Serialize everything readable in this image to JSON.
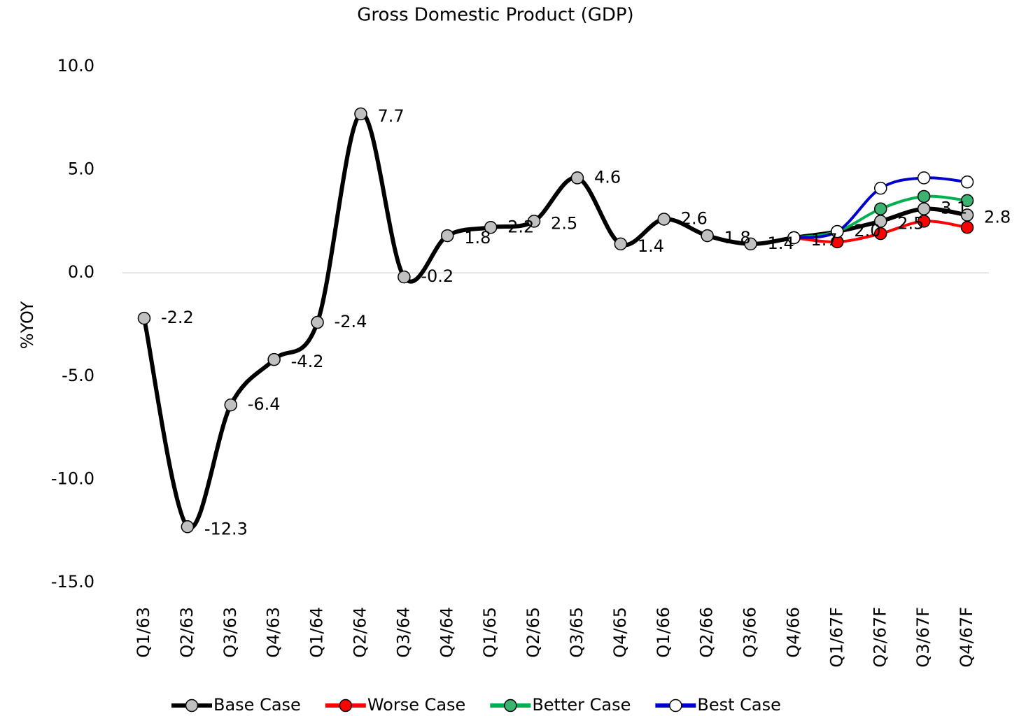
{
  "chart_data": {
    "type": "line",
    "title": "Gross Domestic Product (GDP)",
    "y_label": "%YOY",
    "categories": [
      "Q1/63",
      "Q2/63",
      "Q3/63",
      "Q4/63",
      "Q1/64",
      "Q2/64",
      "Q3/64",
      "Q4/64",
      "Q1/65",
      "Q2/65",
      "Q3/65",
      "Q4/65",
      "Q1/66",
      "Q2/66",
      "Q3/66",
      "Q4/66",
      "Q1/67F",
      "Q2/67F",
      "Q3/67F",
      "Q4/67F"
    ],
    "series": [
      {
        "name": "Base Case",
        "color": "#000000",
        "marker_fill": "#c0c0c0",
        "values": [
          -2.2,
          -12.3,
          -6.4,
          -4.2,
          -2.4,
          7.7,
          -0.2,
          1.8,
          2.2,
          2.5,
          4.6,
          1.4,
          2.6,
          1.8,
          1.4,
          1.7,
          2.0,
          2.5,
          3.1,
          2.8
        ],
        "value_labels": [
          "-2.2",
          "-12.3",
          "-6.4",
          "-4.2",
          "-2.4",
          "7.7",
          "-0.2",
          "1.8",
          "2.2",
          "2.5",
          "4.6",
          "1.4",
          "2.6",
          "1.8",
          "1.4",
          "1.7",
          "2.0",
          "2.5",
          "3.1",
          "2.8"
        ]
      },
      {
        "name": "Worse Case",
        "color": "#ff0000",
        "marker_fill": "#ff0000",
        "values": [
          null,
          null,
          null,
          null,
          null,
          null,
          null,
          null,
          null,
          null,
          null,
          null,
          null,
          null,
          null,
          1.7,
          1.5,
          1.9,
          2.5,
          2.2
        ]
      },
      {
        "name": "Better Case",
        "color": "#00b050",
        "marker_fill": "#3cb371",
        "values": [
          null,
          null,
          null,
          null,
          null,
          null,
          null,
          null,
          null,
          null,
          null,
          null,
          null,
          null,
          null,
          1.7,
          2.0,
          3.1,
          3.7,
          3.5
        ]
      },
      {
        "name": "Best Case",
        "color": "#0000cc",
        "marker_fill": "#ffffff",
        "values": [
          null,
          null,
          null,
          null,
          null,
          null,
          null,
          null,
          null,
          null,
          null,
          null,
          null,
          null,
          null,
          1.7,
          2.0,
          4.1,
          4.6,
          4.4
        ]
      }
    ],
    "ylim": [
      -15,
      10
    ],
    "yticks": [
      {
        "value": -15,
        "label": "-15.0"
      },
      {
        "value": -10,
        "label": "-10.0"
      },
      {
        "value": -5,
        "label": "-5.0"
      },
      {
        "value": 0,
        "label": "0.0"
      },
      {
        "value": 5,
        "label": "5.0"
      },
      {
        "value": 10,
        "label": "10.0"
      }
    ],
    "grid": false,
    "legend": "bottom"
  }
}
